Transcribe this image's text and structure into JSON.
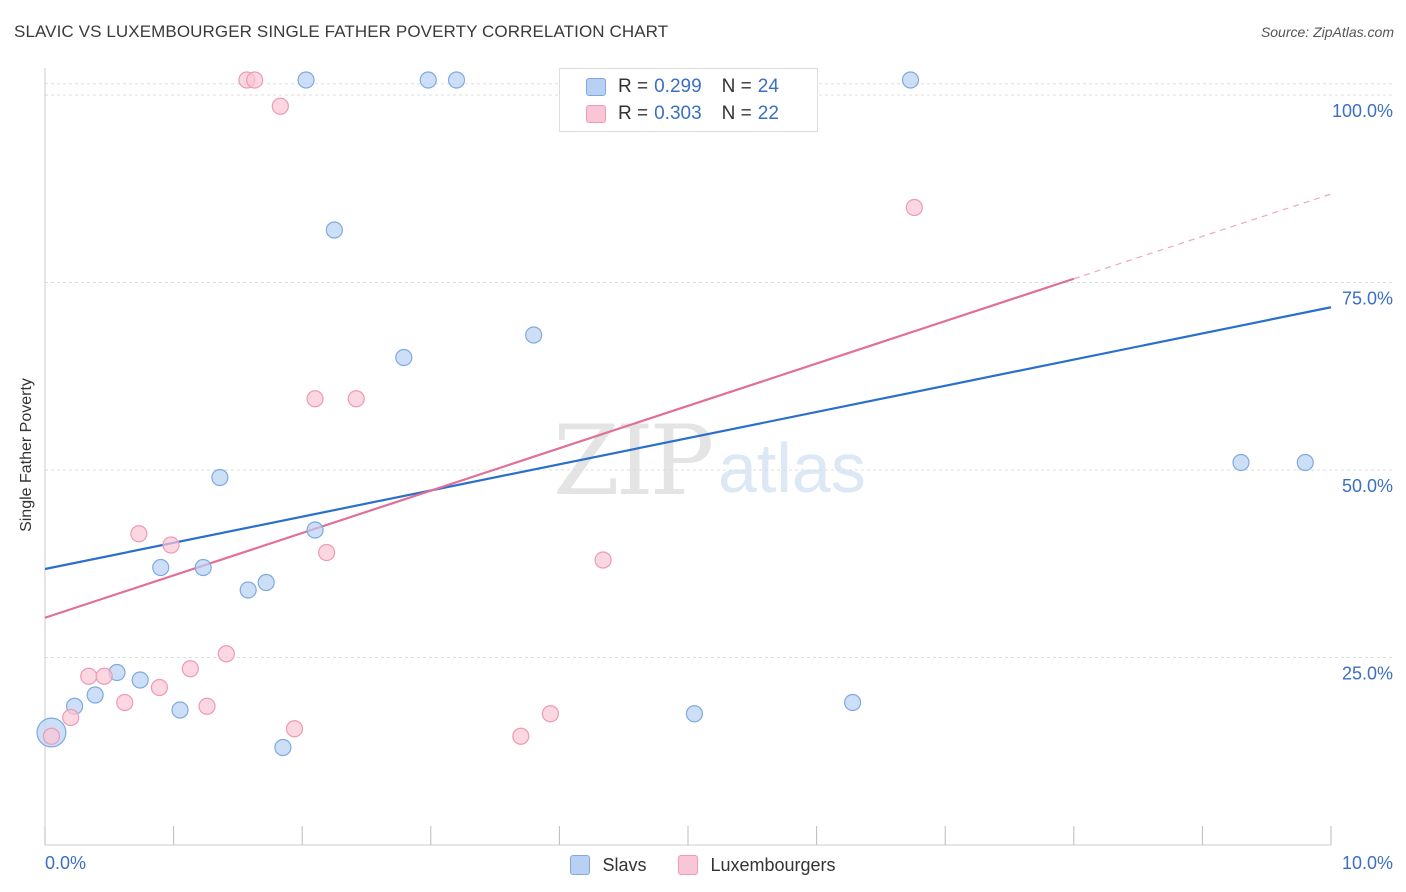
{
  "title": "SLAVIC VS LUXEMBOURGER SINGLE FATHER POVERTY CORRELATION CHART",
  "source": "Source: ZipAtlas.com",
  "watermark": {
    "zip": "ZIP",
    "atlas": "atlas"
  },
  "legend": {
    "rows": [
      {
        "r_label": "R =",
        "r_value": "0.299",
        "n_label": "N =",
        "n_value": "24"
      },
      {
        "r_label": "R =",
        "r_value": "0.303",
        "n_label": "N =",
        "n_value": "22"
      }
    ]
  },
  "bottom_legend": {
    "slavs": "Slavs",
    "luxembourgers": "Luxembourgers"
  },
  "colors": {
    "slavs_fill": "#b8d1f3",
    "slavs_stroke": "#7fa9e0",
    "slavs_line": "#2b6fcc",
    "lux_fill": "#f9c6d5",
    "lux_stroke": "#ef9ab4",
    "lux_line": "#e07098",
    "tick_label": "#3a6fc4",
    "grid": "#dddddd"
  },
  "chart_data": {
    "type": "scatter",
    "title": "SLAVIC VS LUXEMBOURGER SINGLE FATHER POVERTY CORRELATION CHART",
    "xlabel": "",
    "ylabel": "Single Father Poverty",
    "xlim": [
      0,
      10
    ],
    "ylim": [
      0,
      102
    ],
    "x_tick_labels": [
      {
        "value": 0,
        "label": "0.0%"
      },
      {
        "value": 10,
        "label": "10.0%"
      }
    ],
    "y_tick_labels": [
      {
        "value": 25,
        "label": "25.0%"
      },
      {
        "value": 50,
        "label": "50.0%"
      },
      {
        "value": 75,
        "label": "75.0%"
      },
      {
        "value": 100,
        "label": "100.0%"
      }
    ],
    "grid": true,
    "series": [
      {
        "name": "Slavs",
        "x": [
          0.05,
          0.23,
          0.39,
          0.56,
          0.74,
          0.9,
          1.05,
          1.23,
          1.36,
          1.58,
          1.72,
          1.85,
          2.03,
          2.1,
          2.25,
          2.79,
          2.98,
          3.2,
          3.8,
          5.05,
          6.28,
          6.73,
          9.3,
          9.8
        ],
        "y": [
          15,
          18.5,
          20,
          23,
          22,
          37,
          18,
          37,
          49,
          34,
          35,
          13,
          102,
          42,
          82,
          65,
          102,
          102,
          68,
          17.5,
          19,
          102,
          51,
          51
        ],
        "sizes": [
          1.8,
          1,
          1,
          1,
          1,
          1,
          1,
          1,
          1,
          1,
          1,
          1,
          1,
          1,
          1,
          1,
          1,
          1,
          1,
          1,
          1,
          1,
          1,
          1
        ],
        "trend": {
          "x": [
            0,
            10
          ],
          "y": [
            36.8,
            71.7
          ]
        }
      },
      {
        "name": "Luxembourgers",
        "x": [
          0.05,
          0.2,
          0.34,
          0.46,
          0.62,
          0.73,
          0.89,
          0.98,
          1.13,
          1.26,
          1.41,
          1.57,
          1.63,
          1.83,
          1.94,
          2.1,
          2.19,
          2.42,
          3.7,
          3.93,
          4.34,
          6.76
        ],
        "y": [
          14.5,
          17,
          22.5,
          22.5,
          19,
          41.5,
          21,
          40,
          23.5,
          18.5,
          25.5,
          102,
          102,
          98.5,
          15.5,
          59.5,
          39,
          59.5,
          14.5,
          17.5,
          38,
          85
        ],
        "sizes": [
          1,
          1,
          1,
          1,
          1,
          1,
          1,
          1,
          1,
          1,
          1,
          1,
          1,
          1,
          1,
          1,
          1,
          1,
          1,
          1,
          1,
          1
        ],
        "trend": {
          "x": [
            0,
            8
          ],
          "y": [
            30.3,
            75.5
          ],
          "dashed_extension_x": [
            8,
            10
          ],
          "dashed_extension_y": [
            75.5,
            86.8
          ]
        }
      }
    ]
  }
}
